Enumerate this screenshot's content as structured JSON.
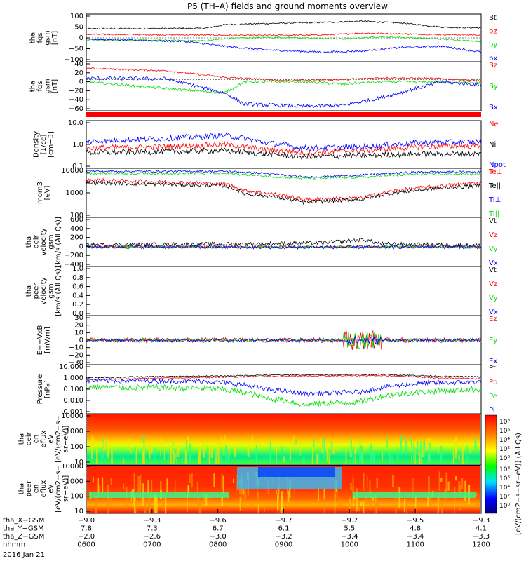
{
  "title": "P5 (TH–A) fields and ground moments overview",
  "colors": {
    "black": "#000000",
    "red": "#ff0000",
    "green": "#00dd00",
    "blue": "#0000ff"
  },
  "chart_data": [
    {
      "id": "p1",
      "type": "line",
      "ylabel": [
        "tha",
        "fgs",
        "gsm",
        "[nT]"
      ],
      "yticks": [
        "100",
        "50",
        "0",
        "−50",
        "−100"
      ],
      "ylim": [
        -100,
        100
      ],
      "series": [
        {
          "name": "Bt",
          "color": "#000000"
        },
        {
          "name": "bz",
          "color": "#ff0000"
        },
        {
          "name": "by",
          "color": "#00dd00"
        },
        {
          "name": "bx",
          "color": "#0000ff"
        }
      ]
    },
    {
      "id": "p2",
      "type": "line",
      "ylabel": [
        "tha",
        "fgs",
        "gsm",
        "[nT]"
      ],
      "yticks": [
        "40",
        "20",
        "0",
        "−20",
        "−40",
        "−60"
      ],
      "ylim": [
        -70,
        40
      ],
      "series": [
        {
          "name": "Bz",
          "color": "#ff0000"
        },
        {
          "name": "By",
          "color": "#00dd00"
        },
        {
          "name": "Bx",
          "color": "#0000ff"
        }
      ]
    },
    {
      "id": "p3",
      "type": "line",
      "log": true,
      "ylabel": [
        "Density",
        "[1/cc]",
        "[cm−3]"
      ],
      "yticks": [
        "10.0",
        "1.0",
        "0.1"
      ],
      "ylim": [
        0.1,
        10
      ],
      "series": [
        {
          "name": "Ne",
          "color": "#ff0000"
        },
        {
          "name": "Ni",
          "color": "#000000"
        },
        {
          "name": "Npot",
          "color": "#0000ff"
        }
      ]
    },
    {
      "id": "p4",
      "type": "line",
      "log": true,
      "ylabel": [
        "mom3",
        "[eV]"
      ],
      "yticks": [
        "10000",
        "1000",
        "100"
      ],
      "ylim": [
        30,
        10000
      ],
      "series": [
        {
          "name": "Te⊥",
          "color": "#ff0000"
        },
        {
          "name": "Te||",
          "color": "#000000"
        },
        {
          "name": "Ti⊥",
          "color": "#0000ff"
        },
        {
          "name": "Ti||",
          "color": "#00dd00"
        }
      ]
    },
    {
      "id": "p5",
      "type": "line",
      "ylabel": [
        "tha",
        "peir",
        "velocity",
        "gsm",
        "[km/s (All Qs)]"
      ],
      "yticks": [
        "600",
        "400",
        "200",
        "0",
        "−200",
        "−400"
      ],
      "ylim": [
        -400,
        600
      ],
      "series": [
        {
          "name": "Vt",
          "color": "#000000"
        },
        {
          "name": "Vz",
          "color": "#ff0000"
        },
        {
          "name": "Vy",
          "color": "#00dd00"
        },
        {
          "name": "Vx",
          "color": "#0000ff"
        }
      ]
    },
    {
      "id": "p6",
      "type": "line",
      "ylabel": [
        "tha",
        "peer",
        "velocity",
        "gsm",
        "[km/s (All Qs)]"
      ],
      "yticks": [
        "1.0",
        "0.8",
        "0.6",
        "0.4",
        "0.2",
        "0.0"
      ],
      "ylim": [
        0,
        1
      ],
      "series": [
        {
          "name": "Vt",
          "color": "#000000"
        },
        {
          "name": "Vz",
          "color": "#ff0000"
        },
        {
          "name": "Vy",
          "color": "#00dd00"
        },
        {
          "name": "Vx",
          "color": "#0000ff"
        }
      ]
    },
    {
      "id": "p7",
      "type": "line",
      "ylabel": [
        "E=−VxB",
        "[mV/m]"
      ],
      "yticks": [
        "30",
        "20",
        "10",
        "0",
        "−10",
        "−20",
        "−30"
      ],
      "ylim": [
        -30,
        30
      ],
      "series": [
        {
          "name": "Ez",
          "color": "#ff0000"
        },
        {
          "name": "Ey",
          "color": "#00dd00"
        },
        {
          "name": "Ex",
          "color": "#0000ff"
        }
      ]
    },
    {
      "id": "p8",
      "type": "line",
      "log": true,
      "ylabel": [
        "Pressure",
        "[nPa]"
      ],
      "yticks": [
        "10.000",
        "1.000",
        "0.100",
        "0.010",
        "0.001"
      ],
      "ylim": [
        0.001,
        10
      ],
      "series": [
        {
          "name": "Pt",
          "color": "#000000"
        },
        {
          "name": "Pb",
          "color": "#ff0000"
        },
        {
          "name": "Pe",
          "color": "#00dd00"
        },
        {
          "name": "Pi",
          "color": "#0000ff"
        }
      ]
    },
    {
      "id": "p9",
      "type": "heatmap",
      "log": true,
      "ylabel": [
        "tha",
        "peir",
        "en",
        "eflux",
        "eV",
        "[eV/(cm2−s−",
        "sr−eV)]"
      ],
      "yticks": [
        "10000",
        "1000",
        "100",
        "10"
      ],
      "ylim": [
        7,
        20000
      ]
    },
    {
      "id": "p10",
      "type": "heatmap",
      "log": true,
      "ylabel": [
        "tha",
        "peer",
        "en",
        "eflux",
        "eV",
        "[eV/(cm2−s−",
        "sr−eV)]"
      ],
      "yticks": [
        "10000",
        "1000",
        "100",
        "10"
      ],
      "ylim": [
        7,
        20000
      ]
    }
  ],
  "colorbar": {
    "ticks": [
      "10⁸",
      "10⁶",
      "10⁴",
      "10²",
      "10⁰"
    ],
    "label": "[eV/(cm2−s−sr−eV)] (All Qs)"
  },
  "xaxis": {
    "rows": [
      {
        "label": "tha_X−GSM",
        "values": [
          "−9.0",
          "−9.3",
          "−9.6",
          "−9.7",
          "−9.7",
          "−9.5",
          "−9.3"
        ]
      },
      {
        "label": "tha_Y−GSM",
        "values": [
          "7.8",
          "7.3",
          "6.7",
          "6.1",
          "5.5",
          "4.8",
          "4.1"
        ]
      },
      {
        "label": "tha_Z−GSM",
        "values": [
          "−2.0",
          "−2.6",
          "−3.0",
          "−3.2",
          "−3.4",
          "−3.4",
          "−3.3"
        ]
      },
      {
        "label": "hhmm",
        "values": [
          "0600",
          "0700",
          "0800",
          "0900",
          "1000",
          "1100",
          "1200"
        ]
      }
    ],
    "date": "2016 Jan 21"
  }
}
